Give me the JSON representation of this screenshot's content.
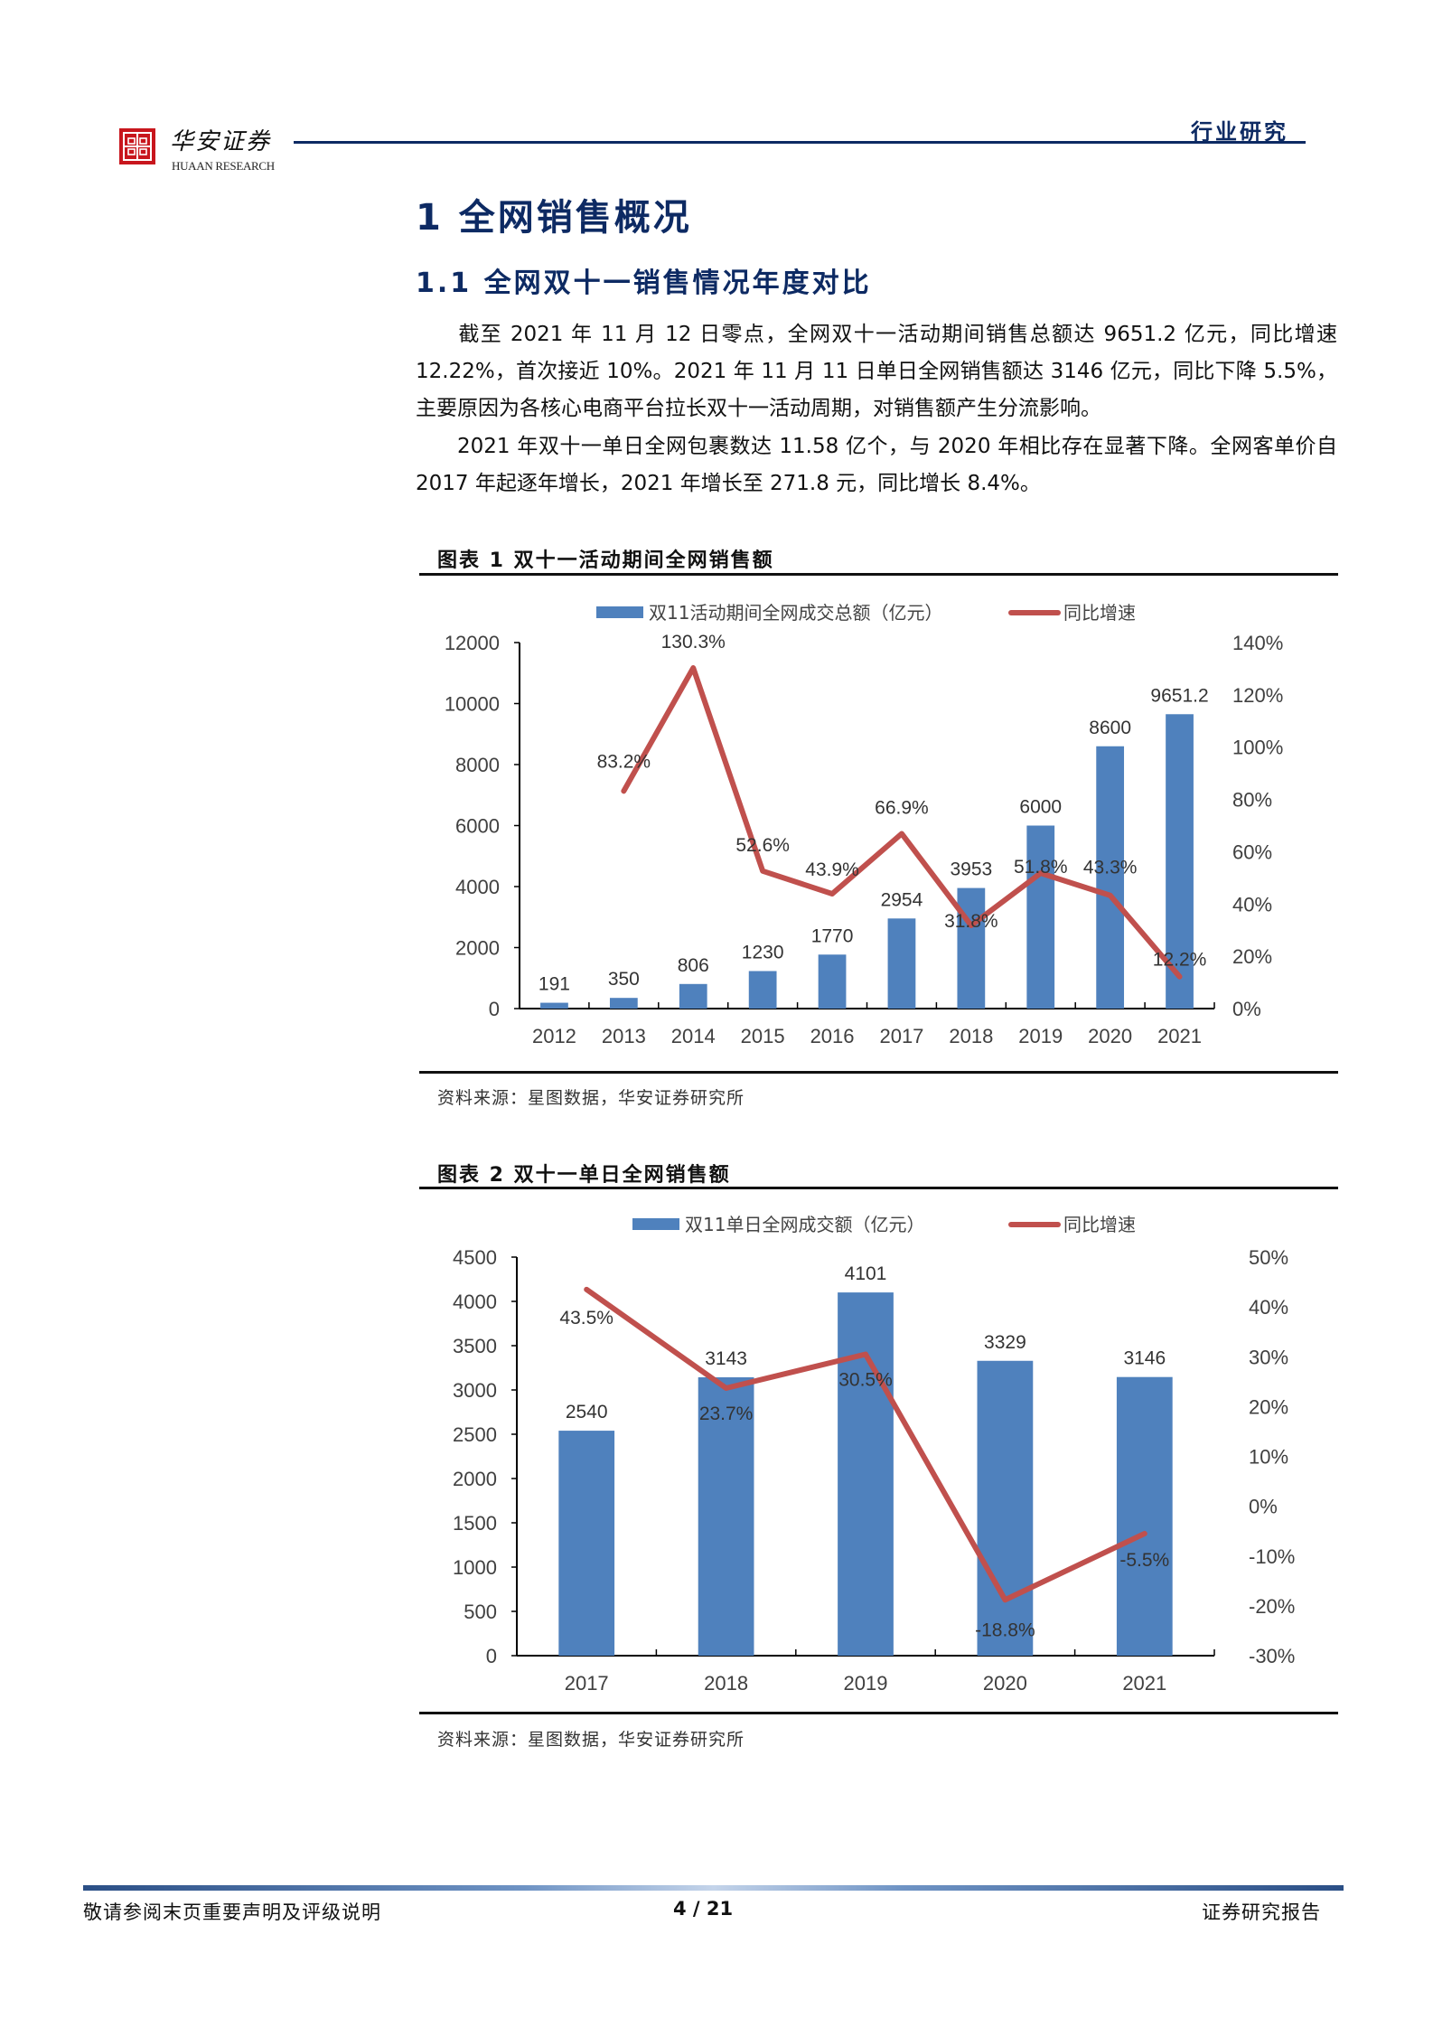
{
  "header": {
    "logo_cn": "华安证券",
    "logo_en": "HUAAN RESEARCH",
    "section_tag": "行业研究"
  },
  "heading1": "1  全网销售概况",
  "heading2": "1.1  全网双十一销售情况年度对比",
  "paragraphs": [
    "截至 2021 年 11 月 12 日零点，全网双十一活动期间销售总额达 9651.2 亿元，同比增速 12.22%，首次接近 10%。2021 年 11 月 11 日单日全网销售额达 3146 亿元，同比下降 5.5%，主要原因为各核心电商平台拉长双十一活动周期，对销售额产生分流影响。",
    "2021 年双十一单日全网包裹数达 11.58 亿个，与 2020 年相比存在显著下降。全网客单价自 2017 年起逐年增长，2021 年增长至 271.8 元，同比增长 8.4%。"
  ],
  "figures": [
    {
      "title": "图表 1 双十一活动期间全网销售额",
      "source": "资料来源：星图数据，华安证券研究所"
    },
    {
      "title": "图表 2 双十一单日全网销售额",
      "source": "资料来源：星图数据，华安证券研究所"
    }
  ],
  "colors": {
    "bar": "#4f81bd",
    "line": "#c0504d",
    "heading": "#0d2a63",
    "logo_red": "#c8161d"
  },
  "chart_data": [
    {
      "type": "bar",
      "title": "双十一活动期间全网销售额",
      "categories": [
        "2012",
        "2013",
        "2014",
        "2015",
        "2016",
        "2017",
        "2018",
        "2019",
        "2020",
        "2021"
      ],
      "series": [
        {
          "name": "双11活动期间全网成交总额（亿元）",
          "type": "bar",
          "axis": "left",
          "values": [
            191,
            350,
            806,
            1230,
            1770,
            2954,
            3953,
            6000,
            8600,
            9651.2
          ],
          "labels": [
            "191",
            "350",
            "806",
            "1230",
            "1770",
            "2954",
            "3953",
            "6000",
            "8600",
            "9651.2"
          ]
        },
        {
          "name": "同比增速",
          "type": "line",
          "axis": "right",
          "values": [
            null,
            83.2,
            130.3,
            52.6,
            43.9,
            66.9,
            31.8,
            51.8,
            43.3,
            12.2
          ],
          "labels": [
            "",
            "83.2%",
            "130.3%",
            "52.6%",
            "43.9%",
            "66.9%",
            "31.8%",
            "51.8%",
            "43.3%",
            "12.2%"
          ]
        }
      ],
      "ylim": [
        0,
        12000
      ],
      "yticks": [
        "0",
        "2000",
        "4000",
        "6000",
        "8000",
        "10000",
        "12000"
      ],
      "y2lim": [
        0,
        140
      ],
      "y2ticks": [
        "0%",
        "20%",
        "40%",
        "60%",
        "80%",
        "100%",
        "120%",
        "140%"
      ],
      "legend_position": "top",
      "grid": false
    },
    {
      "type": "bar",
      "title": "双十一单日全网销售额",
      "categories": [
        "2017",
        "2018",
        "2019",
        "2020",
        "2021"
      ],
      "series": [
        {
          "name": "双11单日全网成交额（亿元）",
          "type": "bar",
          "axis": "left",
          "values": [
            2540,
            3143,
            4101,
            3329,
            3146
          ],
          "labels": [
            "2540",
            "3143",
            "4101",
            "3329",
            "3146"
          ]
        },
        {
          "name": "同比增速",
          "type": "line",
          "axis": "right",
          "values": [
            43.5,
            23.7,
            30.5,
            -18.8,
            -5.5
          ],
          "labels": [
            "43.5%",
            "23.7%",
            "30.5%",
            "-18.8%",
            "-5.5%"
          ]
        }
      ],
      "ylim": [
        0,
        4500
      ],
      "yticks": [
        "0",
        "500",
        "1000",
        "1500",
        "2000",
        "2500",
        "3000",
        "3500",
        "4000",
        "4500"
      ],
      "y2lim": [
        -30,
        50
      ],
      "y2ticks": [
        "-30%",
        "-20%",
        "-10%",
        "0%",
        "10%",
        "20%",
        "30%",
        "40%",
        "50%"
      ],
      "legend_position": "top",
      "grid": false
    }
  ],
  "footer": {
    "disclaimer": "敬请参阅末页重要声明及评级说明",
    "page": "4 / 21",
    "doc_type": "证券研究报告"
  }
}
